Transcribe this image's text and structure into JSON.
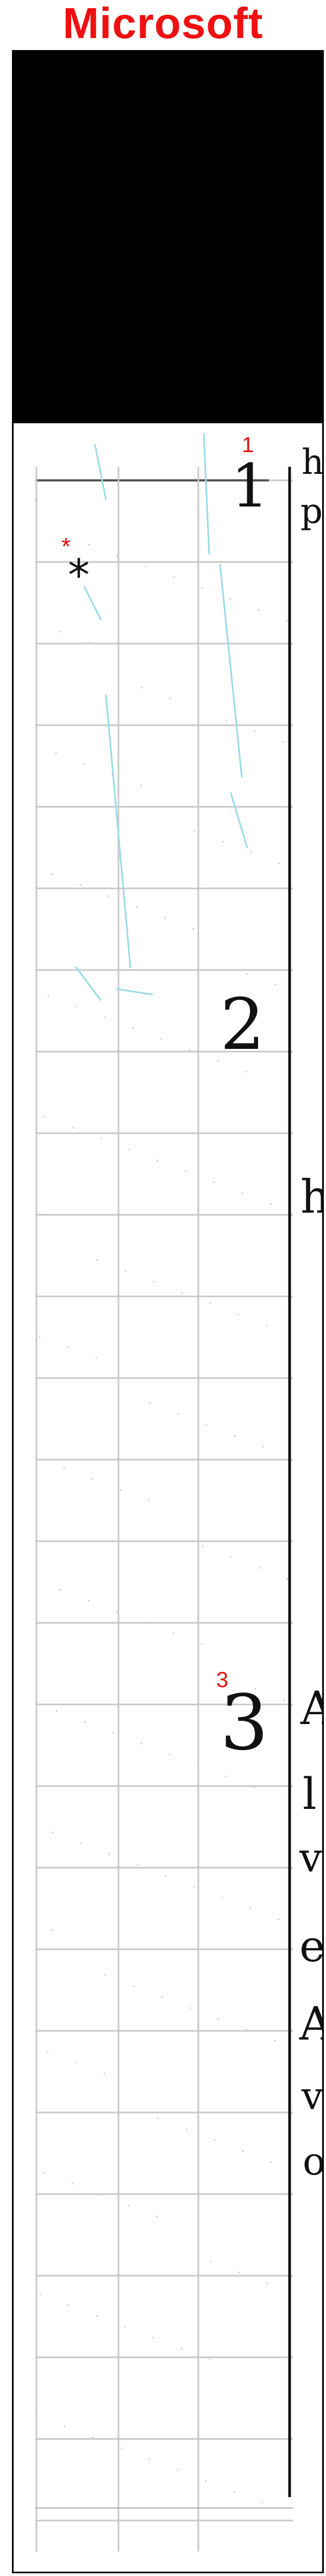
{
  "header": {
    "brand_title": "Microsoft"
  },
  "colors": {
    "title": "#ee1111",
    "redaction": "#000000",
    "grid_line": "#c8c8c8",
    "ink": "#111111",
    "annotation": "#e01010",
    "faded_ink": "#9adbe8"
  },
  "document": {
    "redaction_label": "redacted-region",
    "annotations": [
      {
        "id": "marker-1",
        "text": "1"
      },
      {
        "id": "marker-asterisk",
        "text": "*"
      },
      {
        "id": "marker-3",
        "text": "3"
      }
    ],
    "handwritten_numbers": [
      {
        "id": "number-1",
        "text": "1"
      },
      {
        "id": "number-2",
        "text": "2"
      },
      {
        "id": "number-3",
        "text": "3"
      }
    ],
    "handwritten_letters": [
      {
        "id": "letter-h-top",
        "text": "h"
      },
      {
        "id": "letter-p",
        "text": "p"
      },
      {
        "id": "letter-h-mid",
        "text": "h"
      },
      {
        "id": "letter-A-1",
        "text": "A"
      },
      {
        "id": "letter-l",
        "text": "l"
      },
      {
        "id": "letter-v",
        "text": "v"
      },
      {
        "id": "letter-e",
        "text": "e"
      },
      {
        "id": "letter-A-2",
        "text": "A"
      },
      {
        "id": "letter-v-2",
        "text": "v"
      },
      {
        "id": "letter-o",
        "text": "o"
      }
    ],
    "asterisk_glyph": "*"
  }
}
